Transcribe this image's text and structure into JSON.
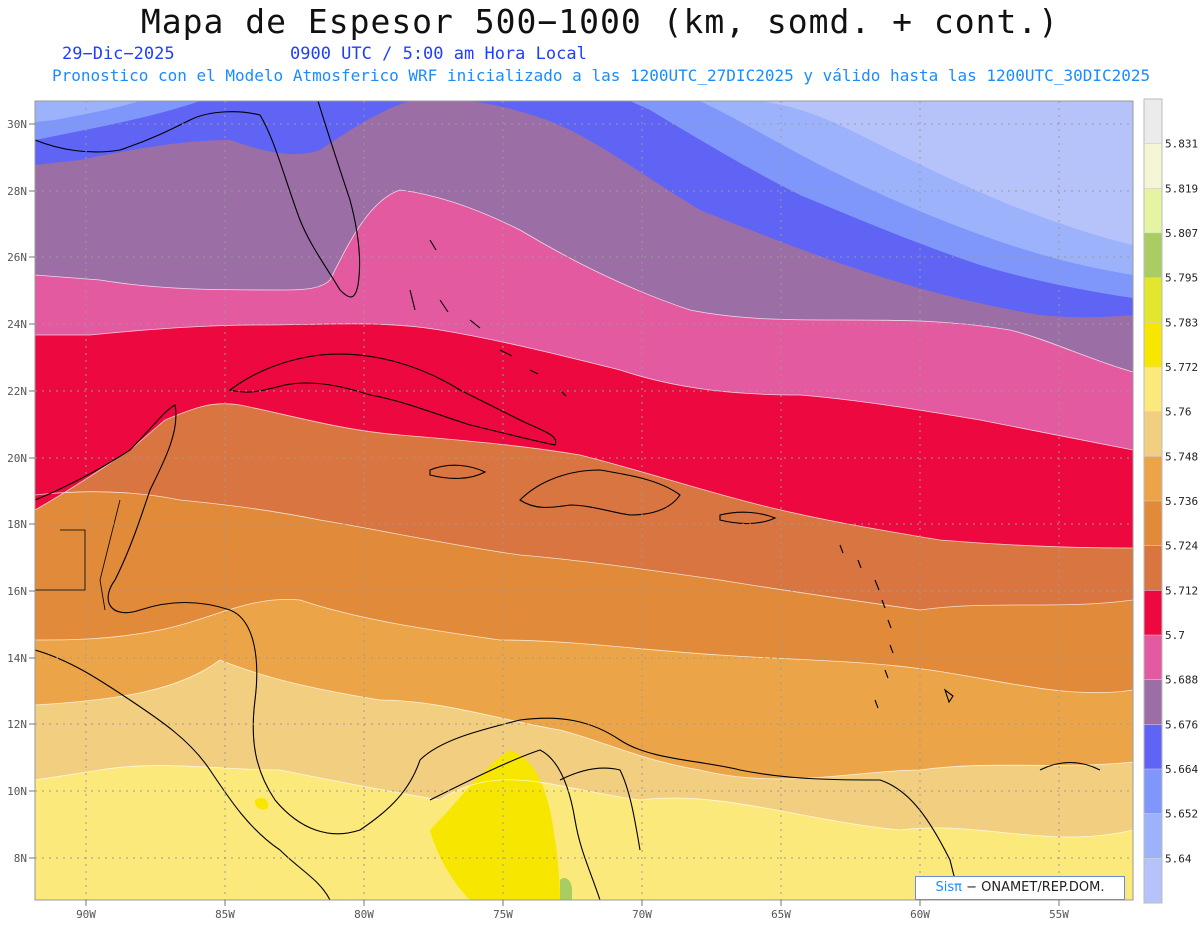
{
  "header": {
    "title": "Mapa de Espesor 500−1000 (km, somd. + cont.)",
    "date": "29−Dic−2025",
    "time": "0900 UTC / 5:00 am Hora Local",
    "forecast_line": "Pronostico con el Modelo Atmosferico WRF inicializado a las 1200UTC_27DIC2025 y válido hasta las  1200UTC_30DIC2025"
  },
  "map": {
    "lat_ticks": [
      "30N",
      "28N",
      "26N",
      "24N",
      "22N",
      "20N",
      "18N",
      "16N",
      "14N",
      "12N",
      "10N",
      "8N"
    ],
    "lon_ticks": [
      "90W",
      "85W",
      "80W",
      "75W",
      "70W",
      "65W",
      "60W",
      "55W"
    ],
    "grid": true
  },
  "colorbar": {
    "labels": [
      "5.831",
      "5.819",
      "5.807",
      "5.795",
      "5.783",
      "5.772",
      "5.76",
      "5.748",
      "5.736",
      "5.724",
      "5.712",
      "5.7",
      "5.688",
      "5.676",
      "5.664",
      "5.652",
      "5.64"
    ],
    "colors": [
      "#ebebeb",
      "#f4f6d4",
      "#e4f4a0",
      "#a9cc63",
      "#e2e62e",
      "#f6e600",
      "#fce97c",
      "#f2cf80",
      "#eba548",
      "#e08a3a",
      "#d87540",
      "#ee0840",
      "#e35aa0",
      "#9b6fa6",
      "#5f64f5",
      "#7f97fb",
      "#9cb2fb",
      "#b6c3fb"
    ]
  },
  "credit": {
    "brand": "Sisπ",
    "text": " − ONAMET/REP.DOM."
  }
}
